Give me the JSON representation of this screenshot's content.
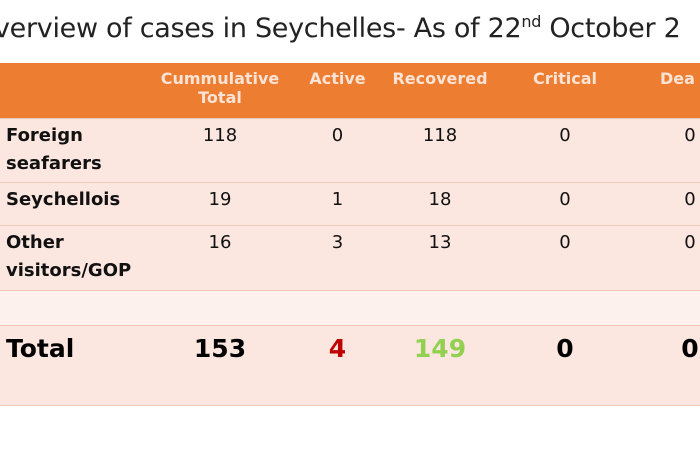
{
  "title": {
    "main": "verview  of cases in Seychelles- As of 22",
    "sup": "nd",
    "rest": " October 2"
  },
  "table": {
    "header": [
      "Cummulative Total",
      "Active",
      "Recovered",
      "Critical",
      "Dea"
    ],
    "rows": [
      [
        "Foreign seafarers",
        "118",
        "0",
        "118",
        "0",
        "0"
      ],
      [
        "Seychellois",
        "19",
        "1",
        "18",
        "0",
        "0"
      ],
      [
        "Other visitors/GOP",
        "16",
        "3",
        "13",
        "0",
        "0"
      ]
    ],
    "total": [
      "Total",
      "153",
      "4",
      "149",
      "0",
      "0"
    ]
  }
}
